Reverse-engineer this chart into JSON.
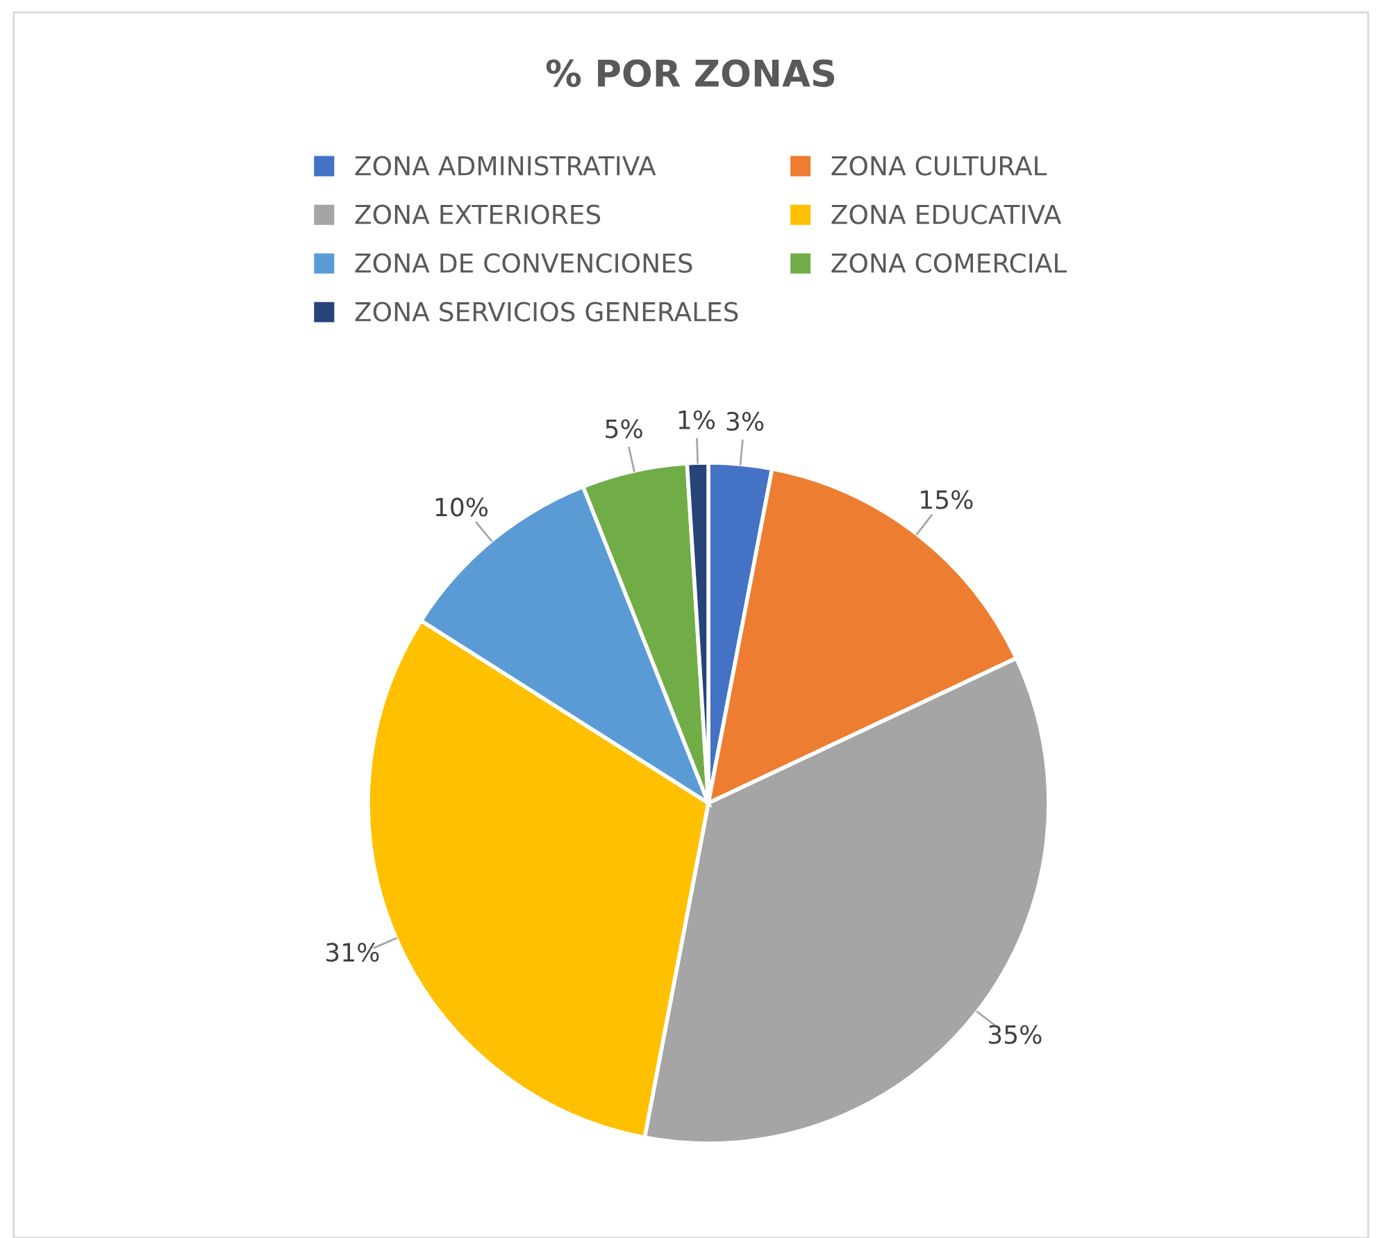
{
  "chart_data": {
    "type": "pie",
    "title": "% POR ZONAS",
    "categories": [
      "ZONA ADMINISTRATIVA",
      "ZONA CULTURAL",
      "ZONA EXTERIORES",
      "ZONA EDUCATIVA",
      "ZONA DE CONVENCIONES",
      "ZONA COMERCIAL",
      "ZONA SERVICIOS GENERALES"
    ],
    "values": [
      3,
      15,
      35,
      31,
      10,
      5,
      1
    ],
    "value_labels": [
      "3%",
      "15%",
      "35%",
      "31%",
      "10%",
      "5%",
      "1%"
    ],
    "colors": [
      "#4472c4",
      "#ed7d31",
      "#a5a5a5",
      "#ffc000",
      "#5b9bd5",
      "#70ad47",
      "#264478"
    ],
    "legend": "top"
  }
}
